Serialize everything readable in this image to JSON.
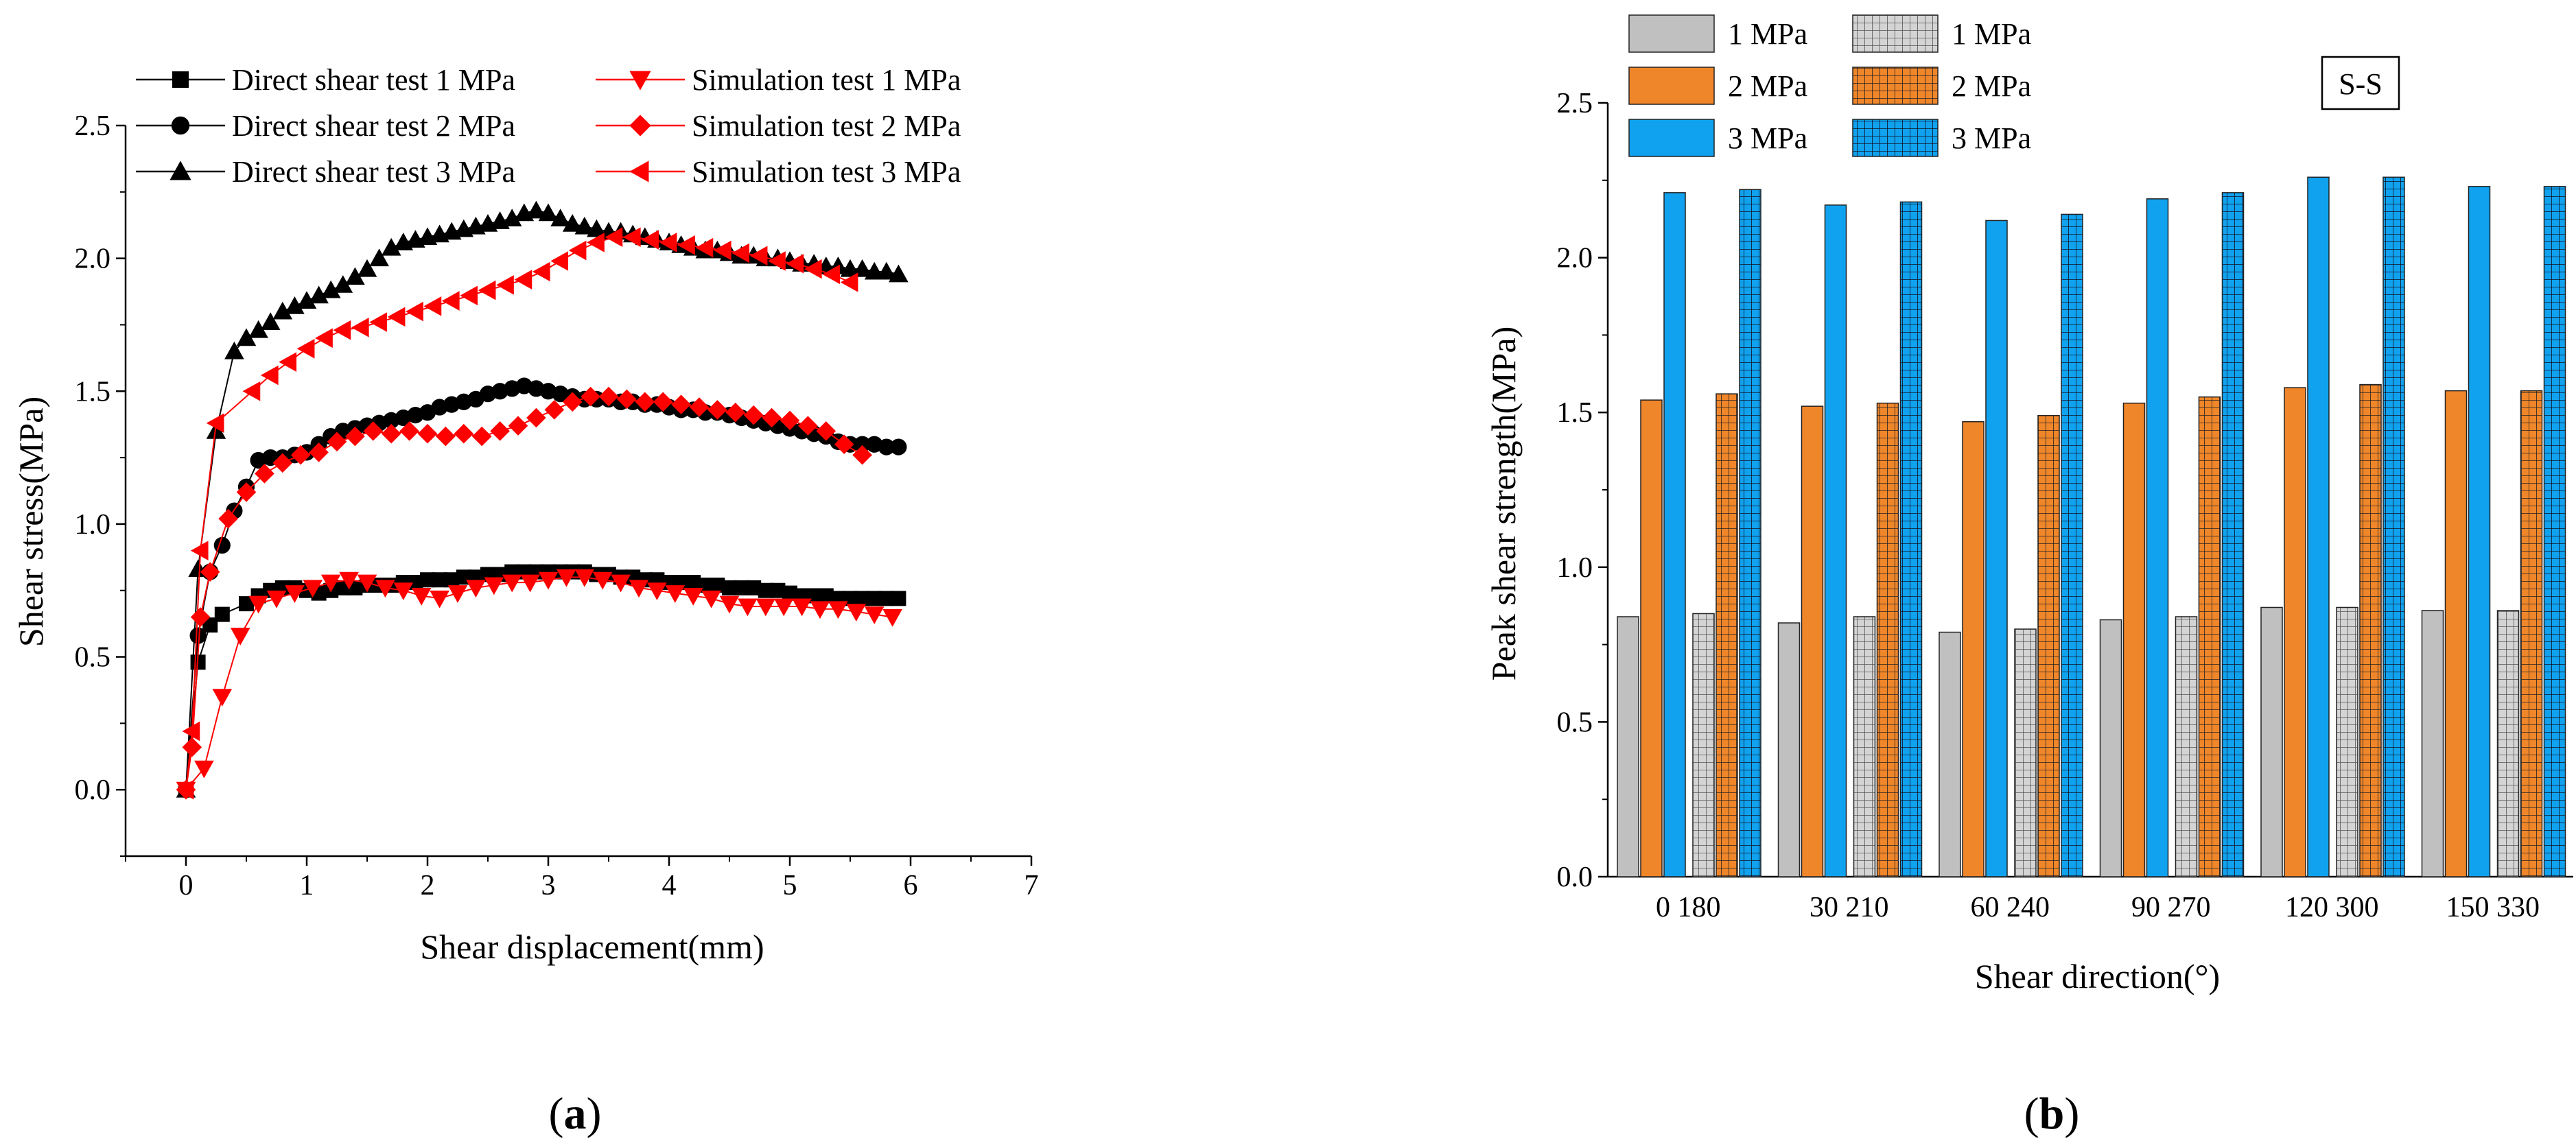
{
  "panel_labels": {
    "a_open": "(",
    "a_letter": "a",
    "a_close": ")",
    "b_open": "(",
    "b_letter": "b",
    "b_close": ")"
  },
  "chart_data": [
    {
      "id": "a",
      "type": "line",
      "xlabel": "Shear displacement(mm)",
      "ylabel": "Shear stress(MPa)",
      "xlim": [
        -0.5,
        7
      ],
      "ylim": [
        -0.25,
        2.5
      ],
      "xticks": [
        0,
        1,
        2,
        3,
        4,
        5,
        6,
        7
      ],
      "yticks": [
        0.0,
        0.5,
        1.0,
        1.5,
        2.0,
        2.5
      ],
      "xtick_labels": [
        "0",
        "1",
        "2",
        "3",
        "4",
        "5",
        "6",
        "7"
      ],
      "ytick_labels": [
        "0.0",
        "0.5",
        "1.0",
        "1.5",
        "2.0",
        "2.5"
      ],
      "series": [
        {
          "name": "Direct shear test 1 MPa",
          "color": "#000000",
          "marker": "square",
          "x": [
            0,
            0.1,
            0.2,
            0.3,
            0.5,
            0.6,
            0.7,
            0.8,
            0.9,
            1.0,
            1.1,
            1.2,
            1.3,
            1.4,
            1.5,
            1.6,
            1.7,
            1.8,
            1.9,
            2.0,
            2.1,
            2.2,
            2.3,
            2.4,
            2.5,
            2.6,
            2.7,
            2.8,
            2.9,
            3.0,
            3.1,
            3.2,
            3.3,
            3.4,
            3.5,
            3.6,
            3.7,
            3.8,
            3.9,
            4.0,
            4.1,
            4.2,
            4.3,
            4.4,
            4.5,
            4.6,
            4.7,
            4.8,
            4.9,
            5.0,
            5.1,
            5.2,
            5.3,
            5.4,
            5.5,
            5.6,
            5.7,
            5.8,
            5.9
          ],
          "y": [
            0,
            0.48,
            0.62,
            0.66,
            0.7,
            0.73,
            0.75,
            0.76,
            0.76,
            0.75,
            0.74,
            0.75,
            0.76,
            0.76,
            0.77,
            0.77,
            0.77,
            0.78,
            0.78,
            0.79,
            0.79,
            0.79,
            0.8,
            0.8,
            0.81,
            0.81,
            0.82,
            0.82,
            0.82,
            0.82,
            0.82,
            0.82,
            0.82,
            0.81,
            0.81,
            0.8,
            0.8,
            0.79,
            0.79,
            0.78,
            0.78,
            0.78,
            0.77,
            0.77,
            0.76,
            0.76,
            0.76,
            0.75,
            0.75,
            0.74,
            0.73,
            0.73,
            0.73,
            0.72,
            0.72,
            0.72,
            0.72,
            0.72,
            0.72
          ]
        },
        {
          "name": "Direct shear test 2 MPa",
          "color": "#000000",
          "marker": "circle",
          "x": [
            0,
            0.1,
            0.2,
            0.3,
            0.4,
            0.5,
            0.6,
            0.7,
            0.8,
            0.9,
            1.0,
            1.1,
            1.2,
            1.3,
            1.4,
            1.5,
            1.6,
            1.7,
            1.8,
            1.9,
            2.0,
            2.1,
            2.2,
            2.3,
            2.4,
            2.5,
            2.6,
            2.7,
            2.8,
            2.9,
            3.0,
            3.1,
            3.2,
            3.3,
            3.4,
            3.5,
            3.6,
            3.7,
            3.8,
            3.9,
            4.0,
            4.1,
            4.2,
            4.3,
            4.4,
            4.5,
            4.6,
            4.7,
            4.8,
            4.9,
            5.0,
            5.1,
            5.2,
            5.3,
            5.4,
            5.5,
            5.6,
            5.7,
            5.8,
            5.9
          ],
          "y": [
            0,
            0.58,
            0.82,
            0.92,
            1.05,
            1.14,
            1.24,
            1.25,
            1.25,
            1.26,
            1.27,
            1.3,
            1.33,
            1.35,
            1.36,
            1.37,
            1.38,
            1.39,
            1.4,
            1.41,
            1.42,
            1.44,
            1.45,
            1.46,
            1.47,
            1.49,
            1.5,
            1.51,
            1.52,
            1.51,
            1.5,
            1.49,
            1.48,
            1.47,
            1.47,
            1.47,
            1.46,
            1.46,
            1.45,
            1.45,
            1.44,
            1.43,
            1.43,
            1.42,
            1.42,
            1.41,
            1.4,
            1.39,
            1.38,
            1.37,
            1.36,
            1.35,
            1.34,
            1.33,
            1.31,
            1.3,
            1.3,
            1.3,
            1.29,
            1.29
          ]
        },
        {
          "name": "Direct shear test 3 MPa",
          "color": "#000000",
          "marker": "triangle-up",
          "x": [
            0,
            0.1,
            0.25,
            0.4,
            0.5,
            0.6,
            0.7,
            0.8,
            0.9,
            1.0,
            1.1,
            1.2,
            1.3,
            1.4,
            1.5,
            1.6,
            1.7,
            1.8,
            1.9,
            2.0,
            2.1,
            2.2,
            2.3,
            2.4,
            2.5,
            2.6,
            2.7,
            2.8,
            2.9,
            3.0,
            3.1,
            3.2,
            3.3,
            3.4,
            3.5,
            3.6,
            3.7,
            3.8,
            3.9,
            4.0,
            4.1,
            4.2,
            4.3,
            4.4,
            4.5,
            4.6,
            4.7,
            4.8,
            4.9,
            5.0,
            5.1,
            5.2,
            5.3,
            5.4,
            5.5,
            5.6,
            5.7,
            5.8,
            5.9
          ],
          "y": [
            0,
            0.83,
            1.35,
            1.65,
            1.7,
            1.73,
            1.76,
            1.8,
            1.82,
            1.84,
            1.86,
            1.88,
            1.9,
            1.93,
            1.96,
            2.0,
            2.04,
            2.06,
            2.07,
            2.08,
            2.09,
            2.1,
            2.11,
            2.12,
            2.13,
            2.14,
            2.15,
            2.17,
            2.18,
            2.17,
            2.15,
            2.13,
            2.12,
            2.11,
            2.1,
            2.1,
            2.09,
            2.08,
            2.07,
            2.06,
            2.05,
            2.04,
            2.03,
            2.03,
            2.02,
            2.01,
            2.01,
            2.0,
            2.0,
            1.99,
            1.98,
            1.98,
            1.97,
            1.97,
            1.96,
            1.96,
            1.95,
            1.95,
            1.94
          ]
        },
        {
          "name": "Simulation test 1 MPa",
          "color": "#ff0000",
          "marker": "triangle-down",
          "x": [
            0,
            0.15,
            0.3,
            0.45,
            0.6,
            0.75,
            0.9,
            1.05,
            1.2,
            1.35,
            1.5,
            1.65,
            1.8,
            1.95,
            2.1,
            2.25,
            2.4,
            2.55,
            2.7,
            2.85,
            3.0,
            3.15,
            3.3,
            3.45,
            3.6,
            3.75,
            3.9,
            4.05,
            4.2,
            4.35,
            4.5,
            4.65,
            4.8,
            4.95,
            5.1,
            5.25,
            5.4,
            5.55,
            5.7,
            5.85
          ],
          "y": [
            0,
            0.08,
            0.35,
            0.58,
            0.7,
            0.72,
            0.74,
            0.76,
            0.78,
            0.79,
            0.78,
            0.76,
            0.75,
            0.73,
            0.72,
            0.74,
            0.76,
            0.77,
            0.78,
            0.78,
            0.79,
            0.8,
            0.8,
            0.79,
            0.78,
            0.76,
            0.75,
            0.74,
            0.73,
            0.72,
            0.7,
            0.69,
            0.69,
            0.69,
            0.69,
            0.68,
            0.68,
            0.67,
            0.66,
            0.65
          ]
        },
        {
          "name": "Simulation test 2 MPa",
          "color": "#ff0000",
          "marker": "diamond",
          "x": [
            0,
            0.05,
            0.12,
            0.2,
            0.35,
            0.5,
            0.65,
            0.8,
            0.95,
            1.1,
            1.25,
            1.4,
            1.55,
            1.7,
            1.85,
            2.0,
            2.15,
            2.3,
            2.45,
            2.6,
            2.75,
            2.9,
            3.05,
            3.2,
            3.35,
            3.5,
            3.65,
            3.8,
            3.95,
            4.1,
            4.25,
            4.4,
            4.55,
            4.7,
            4.85,
            5.0,
            5.15,
            5.3,
            5.45,
            5.6
          ],
          "y": [
            0,
            0.16,
            0.65,
            0.82,
            1.02,
            1.12,
            1.19,
            1.23,
            1.26,
            1.27,
            1.31,
            1.33,
            1.35,
            1.34,
            1.35,
            1.34,
            1.33,
            1.34,
            1.33,
            1.35,
            1.37,
            1.4,
            1.43,
            1.46,
            1.48,
            1.48,
            1.47,
            1.46,
            1.46,
            1.45,
            1.44,
            1.43,
            1.42,
            1.41,
            1.4,
            1.39,
            1.37,
            1.35,
            1.3,
            1.26
          ]
        },
        {
          "name": "Simulation test 3 MPa",
          "color": "#ff0000",
          "marker": "triangle-left",
          "x": [
            0,
            0.05,
            0.12,
            0.25,
            0.55,
            0.7,
            0.85,
            1.0,
            1.15,
            1.3,
            1.45,
            1.6,
            1.75,
            1.9,
            2.05,
            2.2,
            2.35,
            2.5,
            2.65,
            2.8,
            2.95,
            3.1,
            3.25,
            3.4,
            3.55,
            3.7,
            3.85,
            4.0,
            4.15,
            4.3,
            4.45,
            4.6,
            4.75,
            4.9,
            5.05,
            5.2,
            5.35,
            5.5
          ],
          "y": [
            0,
            0.22,
            0.9,
            1.38,
            1.5,
            1.56,
            1.61,
            1.66,
            1.7,
            1.73,
            1.74,
            1.76,
            1.78,
            1.8,
            1.82,
            1.84,
            1.86,
            1.88,
            1.9,
            1.92,
            1.95,
            1.99,
            2.03,
            2.06,
            2.08,
            2.08,
            2.07,
            2.06,
            2.05,
            2.04,
            2.03,
            2.02,
            2.01,
            1.99,
            1.98,
            1.96,
            1.94,
            1.91
          ]
        }
      ]
    },
    {
      "id": "b",
      "type": "bar",
      "xlabel": "Shear direction(°)",
      "ylabel": "Peak shear strength(MPa)",
      "ylim": [
        0,
        2.5
      ],
      "yticks": [
        0.0,
        0.5,
        1.0,
        1.5,
        2.0,
        2.5
      ],
      "ytick_labels": [
        "0.0",
        "0.5",
        "1.0",
        "1.5",
        "2.0",
        "2.5"
      ],
      "categories": [
        "0  180",
        "30 210",
        "60 240",
        "90 270",
        "120 300",
        "150 330"
      ],
      "annotation": "S-S",
      "series": [
        {
          "name": "1 MPa",
          "pattern": "solid",
          "color": "#c0c0c0",
          "values": [
            0.84,
            0.82,
            0.79,
            0.83,
            0.87,
            0.86
          ]
        },
        {
          "name": "2 MPa",
          "pattern": "solid",
          "color": "#f0862a",
          "values": [
            1.54,
            1.52,
            1.47,
            1.53,
            1.58,
            1.57
          ]
        },
        {
          "name": "3 MPa",
          "pattern": "solid",
          "color": "#10a2ef",
          "values": [
            2.21,
            2.17,
            2.12,
            2.19,
            2.26,
            2.23
          ]
        },
        {
          "name": "1 MPa",
          "pattern": "grid",
          "color": "#c0c0c0",
          "values": [
            0.85,
            0.84,
            0.8,
            0.84,
            0.87,
            0.86
          ]
        },
        {
          "name": "2 MPa",
          "pattern": "grid",
          "color": "#f0862a",
          "values": [
            1.56,
            1.53,
            1.49,
            1.55,
            1.59,
            1.57
          ]
        },
        {
          "name": "3 MPa",
          "pattern": "grid",
          "color": "#10a2ef",
          "values": [
            2.22,
            2.18,
            2.14,
            2.21,
            2.26,
            2.23
          ]
        }
      ]
    }
  ]
}
